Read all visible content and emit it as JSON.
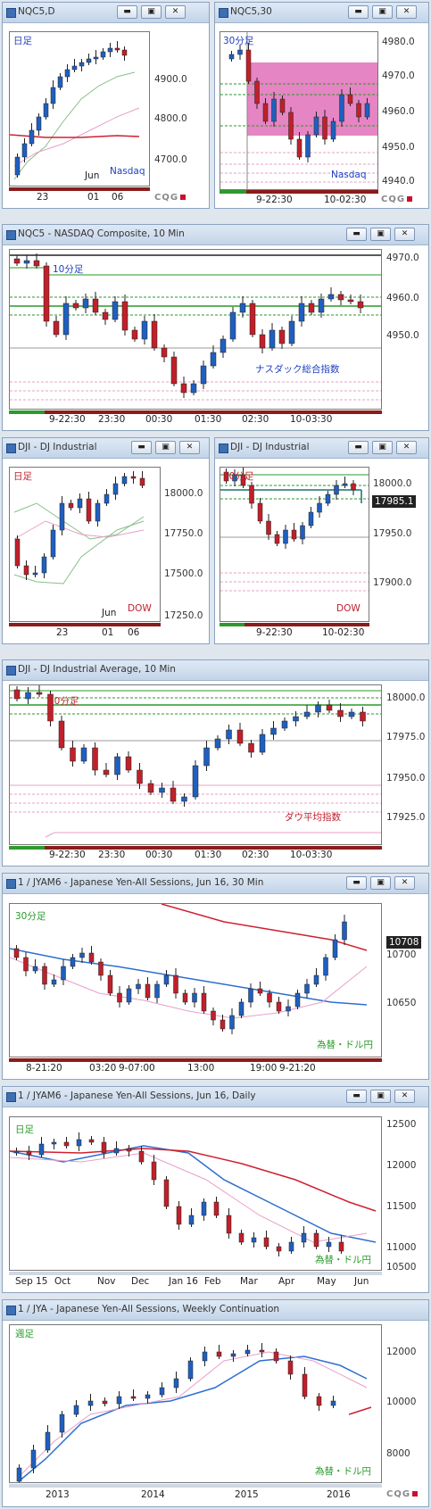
{
  "colors": {
    "up": "#1f5fbf",
    "down": "#c0202a",
    "ma_red": "#d02030",
    "ma_blue": "#2e6fd0",
    "ma_pink": "#e8a0c8",
    "ma_green": "#88c088",
    "green_line": "#2a9a2a",
    "pink_zone": "#e070b8"
  },
  "icons": [
    "minimize-icon",
    "restore-icon",
    "close-icon",
    "chart-window-icon"
  ],
  "window_buttons": {
    "minimize": "▬",
    "restore": "▣",
    "close": "✕"
  },
  "windows": {
    "w1": {
      "title": "NQC5,D",
      "label": "日足",
      "sub": "Nasdaq",
      "y_axis": [
        "4900.0",
        "4800.0",
        "4700.0"
      ],
      "x_axis": [
        "23",
        "Jun",
        "01",
        "06"
      ],
      "logo": "CQG"
    },
    "w2": {
      "title": "NQC5,30",
      "label": "30分足",
      "sub": "Nasdaq",
      "y_axis": [
        "4980.0",
        "4970.0",
        "4960.0",
        "4950.0",
        "4940.0"
      ],
      "x_axis": [
        "9-22:30",
        "10-02:30"
      ],
      "logo": "CQG"
    },
    "w3": {
      "title": "NQC5 - NASDAQ Composite, 10 Min",
      "label": "10分足",
      "sub": "ナスダック総合指数",
      "y_axis": [
        "4970.0",
        "4960.0",
        "4950.0"
      ],
      "x_axis": [
        "9-22:30",
        "23:30",
        "00:30",
        "01:30",
        "02:30",
        "10-03:30"
      ]
    },
    "w4": {
      "title": "DJI - DJ Industrial",
      "label": "日足",
      "sub": "DOW",
      "y_axis": [
        "18000.0",
        "17750.0",
        "17500.0",
        "17250.0"
      ],
      "x_axis": [
        "23",
        "Jun",
        "01",
        "06"
      ]
    },
    "w5": {
      "title": "DJI - DJ Industrial",
      "label": "30分足",
      "sub": "DOW",
      "y_axis": [
        "18000.0",
        "17985.1",
        "17950.0",
        "17900.0"
      ],
      "x_axis": [
        "9-22:30",
        "10-02:30"
      ]
    },
    "w6": {
      "title": "DJI - DJ Industrial Average, 10 Min",
      "label": "10分足",
      "sub": "ダウ平均指数",
      "y_axis": [
        "18000.0",
        "17975.0",
        "17950.0",
        "17925.0"
      ],
      "x_axis": [
        "9-22:30",
        "23:30",
        "00:30",
        "01:30",
        "02:30",
        "10-03:30"
      ]
    },
    "w7": {
      "title": "1 / JYAM6 - Japanese Yen-All Sessions, Jun 16, 30 Min",
      "label": "30分足",
      "sub": "為替・ドル円",
      "y_axis": [
        "10708",
        "10700",
        "10650"
      ],
      "x_axis": [
        "8-21:20",
        "03:20",
        "9-07:00",
        "13:00",
        "19:00",
        "9-21:20"
      ]
    },
    "w8": {
      "title": "1 / JYAM6 - Japanese Yen-All Sessions, Jun 16, Daily",
      "label": "日足",
      "sub": "為替・ドル円",
      "y_axis": [
        "12500",
        "12000",
        "11500",
        "11000",
        "10500"
      ],
      "x_axis": [
        "Sep 15",
        "Oct",
        "Nov",
        "Dec",
        "Jan 16",
        "Feb",
        "Mar",
        "Apr",
        "May",
        "Jun"
      ]
    },
    "w9": {
      "title": "1 / JYA - Japanese Yen-All Sessions, Weekly Continuation",
      "label": "週足",
      "sub": "為替・ドル円",
      "y_axis": [
        "12000",
        "10000",
        "8000"
      ],
      "x_axis": [
        "2013",
        "2014",
        "2015",
        "2016"
      ],
      "logo": "CQG"
    }
  }
}
